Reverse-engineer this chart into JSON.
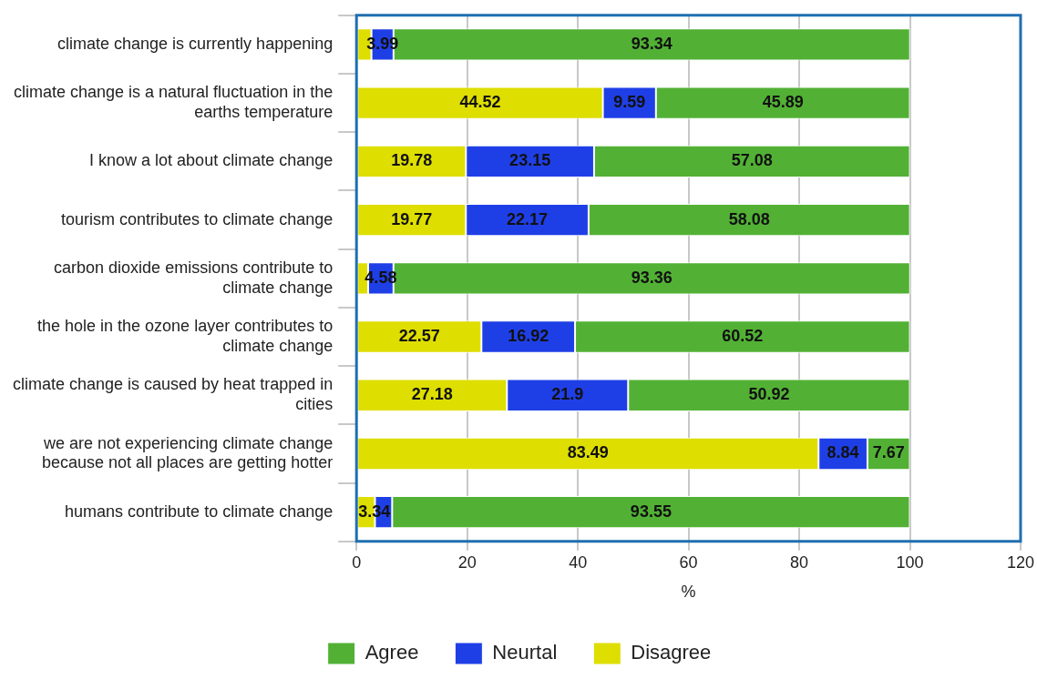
{
  "chart_data": {
    "type": "bar",
    "orientation": "horizontal",
    "stacked": true,
    "xlabel": "%",
    "categories": [
      "climate change is currently happening",
      "climate change is a natural fluctuation in the earths temperature",
      "I know a lot about climate change",
      "tourism contributes to climate change",
      "carbon dioxide emissions contribute to climate change",
      "the hole in the ozone layer contributes to climate change",
      "climate change is caused by heat trapped in cities",
      "we are not experiencing climate change because not all places are getting hotter",
      "humans contribute to climate change"
    ],
    "series": [
      {
        "name": "Disagree",
        "color": "#dede00",
        "values": [
          2.7,
          44.52,
          19.78,
          19.77,
          2.1,
          22.57,
          27.18,
          83.49,
          3.34
        ],
        "value_labels": [
          null,
          "44.52",
          "19.78",
          "19.77",
          null,
          "22.57",
          "27.18",
          "83.49",
          "3.34"
        ]
      },
      {
        "name": "Neurtal",
        "color": "#1f3fe6",
        "values": [
          3.99,
          9.59,
          23.15,
          22.17,
          4.58,
          16.92,
          21.9,
          8.84,
          3.1
        ],
        "value_labels": [
          "3.99",
          "9.59",
          "23.15",
          "22.17",
          "4.58",
          "16.92",
          "21.9",
          "8.84",
          null
        ]
      },
      {
        "name": "Agree",
        "color": "#52b135",
        "values": [
          93.34,
          45.89,
          57.08,
          58.08,
          93.36,
          60.52,
          50.92,
          7.67,
          93.55
        ],
        "value_labels": [
          "93.34",
          "45.89",
          "57.08",
          "58.08",
          "93.36",
          "60.52",
          "50.92",
          "7.67",
          "93.55"
        ]
      }
    ],
    "xlim": [
      0,
      120
    ],
    "xticks": [
      0,
      20,
      40,
      60,
      80,
      100,
      120
    ],
    "grid": "x",
    "legend": "bottom"
  }
}
